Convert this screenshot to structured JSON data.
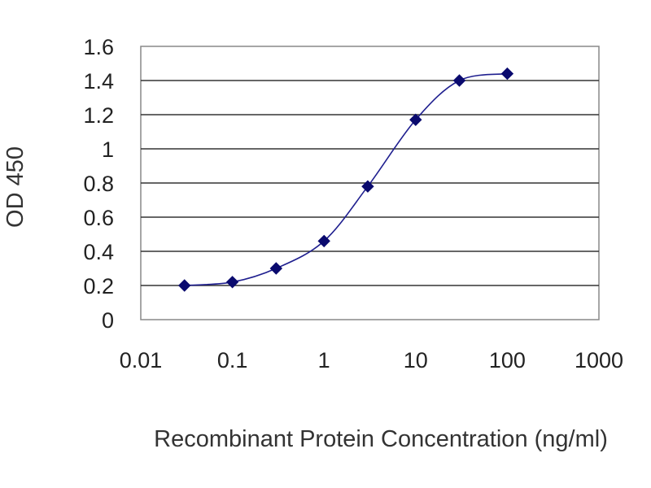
{
  "chart_data": {
    "type": "line",
    "title": "",
    "xlabel": "Recombinant Protein Concentration (ng/ml)",
    "ylabel": "OD 450",
    "x_scale": "log",
    "xlim": [
      0.01,
      1000
    ],
    "ylim": [
      0,
      1.6
    ],
    "x_ticks": [
      "0.01",
      "0.1",
      "1",
      "10",
      "100",
      "1000"
    ],
    "y_ticks": [
      "0",
      "0.2",
      "0.4",
      "0.6",
      "0.8",
      "1",
      "1.2",
      "1.4",
      "1.6"
    ],
    "grid": "horizontal",
    "series": [
      {
        "x": [
          0.03,
          0.1,
          0.3,
          1,
          3,
          10,
          30,
          100
        ],
        "y": [
          0.2,
          0.22,
          0.3,
          0.46,
          0.78,
          1.17,
          1.4,
          1.44
        ],
        "color": "#1f1f8f",
        "marker": "diamond",
        "marker_color": "#0a0a6e"
      }
    ]
  }
}
